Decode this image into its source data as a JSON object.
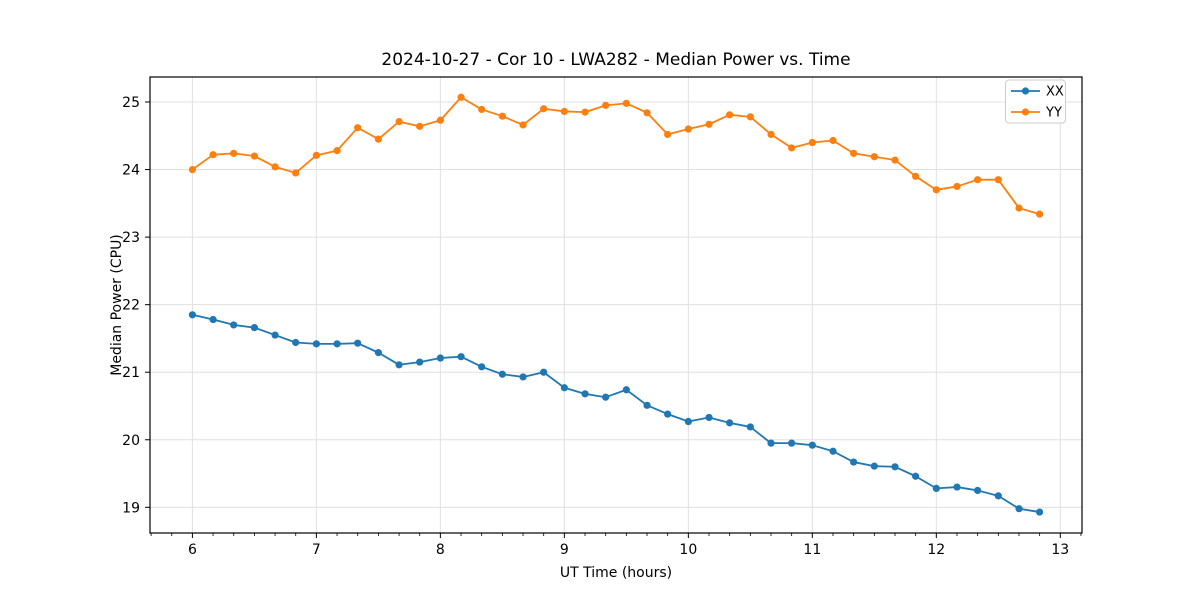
{
  "chart_data": {
    "type": "line",
    "title": "2024-10-27 - Cor 10 - LWA282 - Median Power vs. Time",
    "xlabel": "UT Time (hours)",
    "ylabel": "Median Power (CPU)",
    "xlim": [
      5.658,
      13.175
    ],
    "ylim": [
      18.62,
      25.37
    ],
    "x_ticks": [
      6,
      7,
      8,
      9,
      10,
      11,
      12,
      13
    ],
    "y_ticks": [
      19,
      20,
      21,
      22,
      23,
      24,
      25
    ],
    "x_minor_ticks_per_interval": 6,
    "grid": true,
    "legend_position": "upper right",
    "grid_color": "#e0e0e0",
    "axis_color": "#000000",
    "x": [
      6.0,
      6.167,
      6.333,
      6.5,
      6.667,
      6.833,
      7.0,
      7.167,
      7.333,
      7.5,
      7.667,
      7.833,
      8.0,
      8.167,
      8.333,
      8.5,
      8.667,
      8.833,
      9.0,
      9.167,
      9.333,
      9.5,
      9.667,
      9.833,
      10.0,
      10.167,
      10.333,
      10.5,
      10.667,
      10.833,
      11.0,
      11.167,
      11.333,
      11.5,
      11.667,
      11.833,
      12.0,
      12.167,
      12.333,
      12.5,
      12.667,
      12.833
    ],
    "series": [
      {
        "name": "XX",
        "color": "#1f77b4",
        "values": [
          21.85,
          21.78,
          21.7,
          21.66,
          21.55,
          21.44,
          21.42,
          21.42,
          21.43,
          21.29,
          21.11,
          21.15,
          21.21,
          21.23,
          21.08,
          20.97,
          20.93,
          21.0,
          20.77,
          20.68,
          20.63,
          20.74,
          20.51,
          20.38,
          20.27,
          20.33,
          20.25,
          20.19,
          19.95,
          19.95,
          19.92,
          19.83,
          19.67,
          19.61,
          19.6,
          19.46,
          19.28,
          19.3,
          19.25,
          19.17,
          18.98,
          18.93
        ]
      },
      {
        "name": "YY",
        "color": "#ff7f0e",
        "values": [
          24.0,
          24.22,
          24.24,
          24.2,
          24.04,
          23.95,
          24.21,
          24.28,
          24.62,
          24.45,
          24.71,
          24.64,
          24.73,
          25.07,
          24.89,
          24.79,
          24.66,
          24.9,
          24.86,
          24.85,
          24.95,
          24.98,
          24.84,
          24.52,
          24.6,
          24.67,
          24.81,
          24.78,
          24.52,
          24.32,
          24.4,
          24.43,
          24.24,
          24.19,
          24.14,
          23.9,
          23.7,
          23.75,
          23.85,
          23.85,
          23.43,
          23.34
        ]
      }
    ]
  }
}
